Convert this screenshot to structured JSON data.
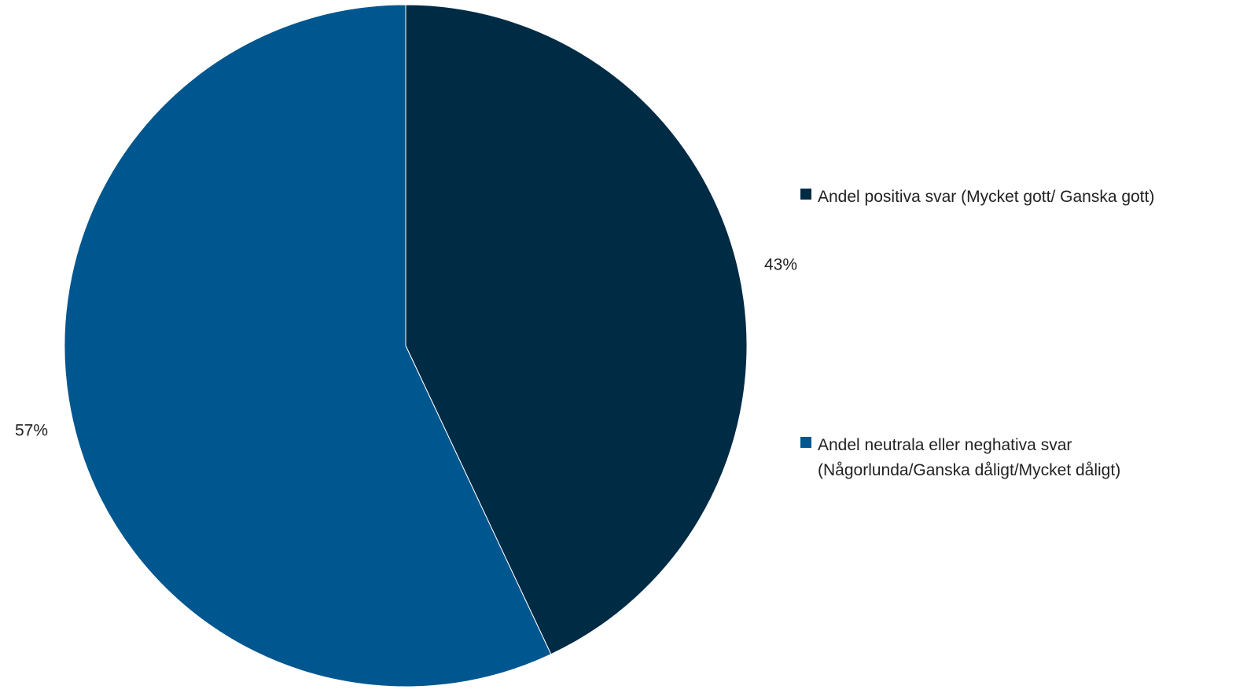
{
  "chart_data": {
    "type": "pie",
    "slices": [
      {
        "label": "Andel positiva svar (Mycket gott/ Ganska gott)",
        "legend_lines": [
          "Andel positiva svar (Mycket gott/ Ganska gott)"
        ],
        "value": 43,
        "display": "43%",
        "color": "#002b45"
      },
      {
        "label": "Andel neutrala eller neghativa svar (Någorlunda/Ganska dåligt/Mycket dåligt)",
        "legend_lines": [
          "Andel neutrala eller neghativa svar",
          "(Någorlunda/Ganska dåligt/Mycket dåligt)"
        ],
        "value": 57,
        "display": "57%",
        "color": "#00568f"
      }
    ],
    "start_angle": "12 o'clock",
    "direction": "clockwise",
    "legend_position": "right"
  }
}
